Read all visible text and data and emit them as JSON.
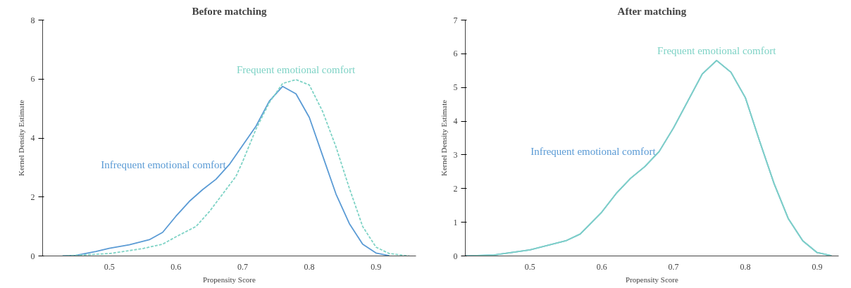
{
  "chart_data": [
    {
      "type": "line",
      "title": "Before matching",
      "xlabel": "Propensity Score",
      "ylabel": "Kernel Density Estimate",
      "xlim": [
        0.4,
        0.96
      ],
      "ylim": [
        0,
        8
      ],
      "xticks": [
        0.5,
        0.6,
        0.7,
        0.8,
        0.9
      ],
      "yticks": [
        0,
        2,
        4,
        6,
        8
      ],
      "grid": false,
      "legend": false,
      "series": [
        {
          "name": "Infrequent emotional comfort",
          "color": "#5b9bd5",
          "line_style": "solid",
          "x": [
            0.43,
            0.45,
            0.48,
            0.5,
            0.53,
            0.56,
            0.58,
            0.6,
            0.62,
            0.64,
            0.66,
            0.68,
            0.7,
            0.72,
            0.74,
            0.76,
            0.78,
            0.8,
            0.82,
            0.84,
            0.86,
            0.88,
            0.9,
            0.92
          ],
          "values": [
            0,
            0.02,
            0.15,
            0.26,
            0.38,
            0.55,
            0.8,
            1.35,
            1.85,
            2.25,
            2.6,
            3.1,
            3.75,
            4.4,
            5.25,
            5.75,
            5.5,
            4.7,
            3.4,
            2.1,
            1.1,
            0.4,
            0.1,
            0.01
          ]
        },
        {
          "name": "Frequent emotional comfort",
          "color": "#7fd3c6",
          "line_style": "dashed",
          "x": [
            0.43,
            0.5,
            0.55,
            0.58,
            0.6,
            0.63,
            0.65,
            0.67,
            0.69,
            0.7,
            0.72,
            0.74,
            0.76,
            0.78,
            0.8,
            0.82,
            0.84,
            0.86,
            0.88,
            0.9,
            0.92,
            0.95
          ],
          "values": [
            0,
            0.08,
            0.25,
            0.4,
            0.65,
            1.0,
            1.5,
            2.1,
            2.7,
            3.2,
            4.3,
            5.2,
            5.85,
            5.98,
            5.8,
            4.9,
            3.7,
            2.3,
            1.0,
            0.3,
            0.08,
            0
          ]
        }
      ]
    },
    {
      "type": "line",
      "title": "After matching",
      "xlabel": "Propensity Score",
      "ylabel": "Kernel Density Estimate",
      "xlim": [
        0.41,
        0.93
      ],
      "ylim": [
        0,
        7
      ],
      "xticks": [
        0.5,
        0.6,
        0.7,
        0.8,
        0.9
      ],
      "yticks": [
        0,
        1,
        2,
        3,
        4,
        5,
        6,
        7
      ],
      "grid": false,
      "legend": false,
      "series": [
        {
          "name": "Infrequent emotional comfort",
          "color": "#5b9bd5",
          "line_style": "solid",
          "x": [
            0.41,
            0.45,
            0.5,
            0.55,
            0.57,
            0.6,
            0.62,
            0.64,
            0.66,
            0.68,
            0.7,
            0.72,
            0.74,
            0.76,
            0.78,
            0.8,
            0.82,
            0.84,
            0.86,
            0.88,
            0.9,
            0.92
          ],
          "values": [
            0,
            0.03,
            0.18,
            0.45,
            0.65,
            1.3,
            1.85,
            2.3,
            2.65,
            3.1,
            3.8,
            4.6,
            5.4,
            5.8,
            5.45,
            4.7,
            3.4,
            2.15,
            1.1,
            0.45,
            0.1,
            0.01
          ]
        },
        {
          "name": "Frequent emotional comfort",
          "color": "#7fd3c6",
          "line_style": "solid",
          "x": [
            0.41,
            0.45,
            0.5,
            0.55,
            0.57,
            0.6,
            0.62,
            0.64,
            0.66,
            0.68,
            0.7,
            0.72,
            0.74,
            0.76,
            0.78,
            0.8,
            0.82,
            0.84,
            0.86,
            0.88,
            0.9,
            0.92
          ],
          "values": [
            0,
            0.03,
            0.18,
            0.45,
            0.65,
            1.3,
            1.85,
            2.3,
            2.65,
            3.1,
            3.8,
            4.6,
            5.4,
            5.8,
            5.45,
            4.7,
            3.4,
            2.15,
            1.1,
            0.45,
            0.1,
            0.01
          ]
        }
      ]
    }
  ]
}
